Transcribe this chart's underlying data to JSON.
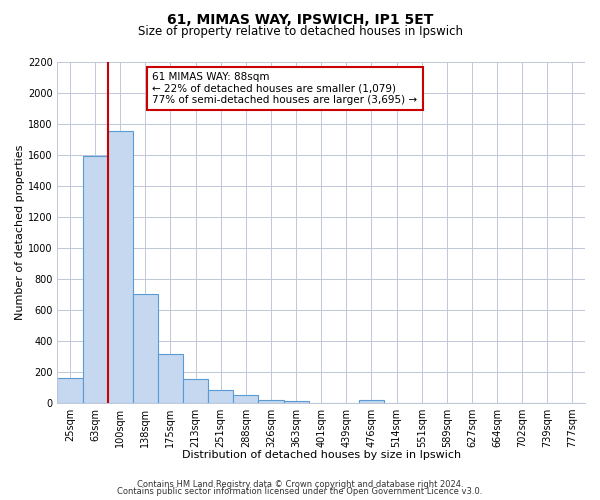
{
  "title": "61, MIMAS WAY, IPSWICH, IP1 5ET",
  "subtitle": "Size of property relative to detached houses in Ipswich",
  "xlabel": "Distribution of detached houses by size in Ipswich",
  "ylabel": "Number of detached properties",
  "bar_labels": [
    "25sqm",
    "63sqm",
    "100sqm",
    "138sqm",
    "175sqm",
    "213sqm",
    "251sqm",
    "288sqm",
    "326sqm",
    "363sqm",
    "401sqm",
    "439sqm",
    "476sqm",
    "514sqm",
    "551sqm",
    "589sqm",
    "627sqm",
    "664sqm",
    "702sqm",
    "739sqm",
    "777sqm"
  ],
  "bar_values": [
    160,
    1590,
    1750,
    700,
    315,
    155,
    80,
    50,
    20,
    15,
    0,
    0,
    20,
    0,
    0,
    0,
    0,
    0,
    0,
    0,
    0
  ],
  "bar_color": "#c5d8f0",
  "bar_edge_color": "#5b9bd5",
  "vline_color": "#cc0000",
  "annotation_line1": "61 MIMAS WAY: 88sqm",
  "annotation_line2": "← 22% of detached houses are smaller (1,079)",
  "annotation_line3": "77% of semi-detached houses are larger (3,695) →",
  "annotation_box_color": "#ffffff",
  "annotation_box_edge": "#cc0000",
  "ylim": [
    0,
    2200
  ],
  "yticks": [
    0,
    200,
    400,
    600,
    800,
    1000,
    1200,
    1400,
    1600,
    1800,
    2000,
    2200
  ],
  "footer1": "Contains HM Land Registry data © Crown copyright and database right 2024.",
  "footer2": "Contains public sector information licensed under the Open Government Licence v3.0.",
  "background_color": "#ffffff",
  "grid_color": "#c0c8d8",
  "title_fontsize": 10,
  "subtitle_fontsize": 8.5,
  "xlabel_fontsize": 8,
  "ylabel_fontsize": 8,
  "tick_fontsize": 7,
  "footer_fontsize": 6
}
